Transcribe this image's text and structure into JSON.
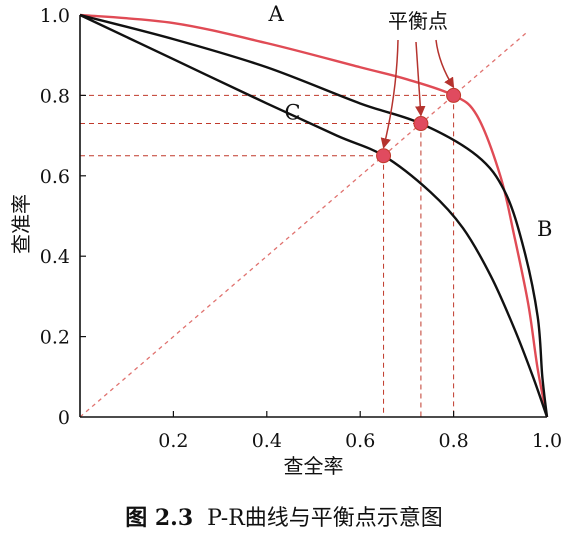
{
  "chart_data": {
    "type": "line",
    "xlabel": "查全率",
    "ylabel": "查准率",
    "xlim": [
      0,
      1
    ],
    "ylim": [
      0,
      1
    ],
    "x_ticks": [
      "0.2",
      "0.4",
      "0.6",
      "0.8",
      "1.0"
    ],
    "y_ticks": [
      "0",
      "0.2",
      "0.4",
      "0.6",
      "0.8",
      "1.0"
    ],
    "series": [
      {
        "name": "A",
        "color": "#e04b55",
        "x": [
          0,
          0.2,
          0.4,
          0.6,
          0.7,
          0.8,
          0.85,
          0.9,
          0.93,
          0.96,
          0.98,
          1.0
        ],
        "y": [
          1.0,
          0.98,
          0.93,
          0.87,
          0.84,
          0.8,
          0.75,
          0.6,
          0.45,
          0.28,
          0.12,
          0
        ]
      },
      {
        "name": "B",
        "color": "#111111",
        "x": [
          0,
          0.2,
          0.4,
          0.6,
          0.73,
          0.85,
          0.91,
          0.95,
          0.98,
          0.99,
          1.0
        ],
        "y": [
          1.0,
          0.94,
          0.87,
          0.78,
          0.73,
          0.65,
          0.56,
          0.42,
          0.25,
          0.1,
          0
        ]
      },
      {
        "name": "C",
        "color": "#111111",
        "x": [
          0,
          0.2,
          0.4,
          0.55,
          0.65,
          0.75,
          0.82,
          0.88,
          0.93,
          0.97,
          1.0
        ],
        "y": [
          1.0,
          0.89,
          0.78,
          0.7,
          0.65,
          0.56,
          0.47,
          0.35,
          0.22,
          0.1,
          0
        ]
      }
    ],
    "diagonal": {
      "from": [
        0,
        0
      ],
      "to": [
        0.96,
        0.96
      ],
      "color": "#e0726f",
      "style": "dashed"
    },
    "annotation": {
      "text": "平衡点",
      "color": "#e04b55",
      "points": [
        {
          "x": 0.65,
          "y": 0.65
        },
        {
          "x": 0.73,
          "y": 0.73
        },
        {
          "x": 0.8,
          "y": 0.8
        }
      ]
    }
  },
  "caption": {
    "prefix": "图 2.3",
    "text": "P-R曲线与平衡点示意图"
  }
}
